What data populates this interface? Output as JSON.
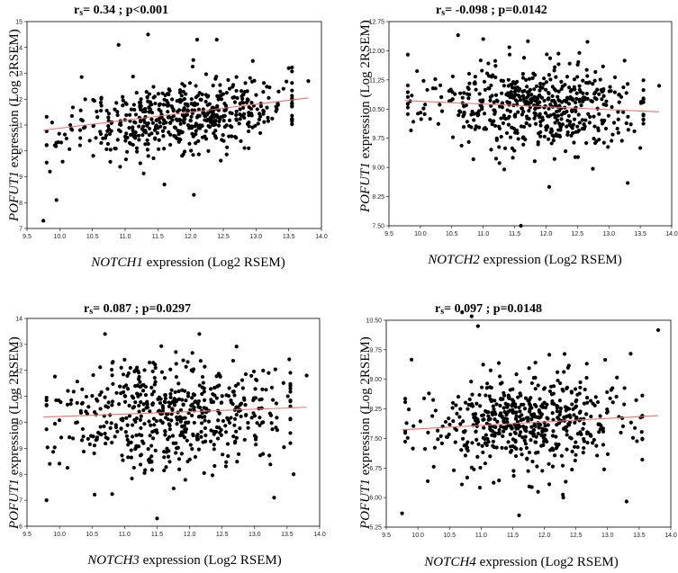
{
  "chart_data": [
    {
      "type": "scatter",
      "stat_prefix": "r",
      "stat_sub": "s",
      "stat_text": "= 0.34 ; p<0.001",
      "xlabel_gene": "NOTCH1",
      "xlabel_rest": " expression (Log2 RSEM)",
      "ylabel_gene": "POFUT1",
      "ylabel_rest": " expression (Log 2RSEM)",
      "xlim": [
        9.5,
        14.0
      ],
      "ylim": [
        7,
        15
      ],
      "xticks": [
        "9.5",
        "10.0",
        "10.5",
        "11.0",
        "11.5",
        "12.0",
        "12.5",
        "13.0",
        "13.5",
        "14.0"
      ],
      "yticks": [
        "7",
        "8",
        "9",
        "10",
        "11",
        "12",
        "13",
        "14",
        "15"
      ],
      "yticks_v": [
        7,
        8,
        9,
        10,
        11,
        12,
        13,
        14,
        15
      ],
      "trend": {
        "x": [
          9.75,
          13.8
        ],
        "y": [
          10.8,
          12.05
        ]
      },
      "sim": {
        "seed": 11,
        "n": 560,
        "slope": 0.31,
        "ysd": 0.68,
        "center": [
          11.85,
          11.35
        ],
        "outliers": [
          [
            9.75,
            7.3
          ],
          [
            9.95,
            8.1
          ],
          [
            11.6,
            8.7
          ],
          [
            12.05,
            8.3
          ],
          [
            11.35,
            14.5
          ],
          [
            12.1,
            14.3
          ],
          [
            12.4,
            14.3
          ],
          [
            10.9,
            14.1
          ],
          [
            13.8,
            12.7
          ],
          [
            9.85,
            9.2
          ],
          [
            13.5,
            13.2
          ]
        ]
      }
    },
    {
      "type": "scatter",
      "stat_prefix": "r",
      "stat_sub": "s",
      "stat_text": "= -0.098 ; p=0.0142",
      "xlabel_gene": "NOTCH2",
      "xlabel_rest": " expression (Log2 RSEM)",
      "ylabel_gene": "POFUT1",
      "ylabel_rest": " expression (Log 2RSEM)",
      "xlim": [
        9.5,
        14.0
      ],
      "ylim": [
        7.5,
        12.75
      ],
      "xticks": [
        "9.5",
        "10.0",
        "10.5",
        "11.0",
        "11.5",
        "12.0",
        "12.5",
        "13.0",
        "13.5",
        "14.0"
      ],
      "yticks": [
        "7.50",
        "8.25",
        "9.00",
        "9.75",
        "10.50",
        "11.25",
        "12.00",
        "12.75"
      ],
      "yticks_v": [
        7.5,
        8.25,
        9.0,
        9.75,
        10.5,
        11.25,
        12.0,
        12.75
      ],
      "trend": {
        "x": [
          9.75,
          13.8
        ],
        "y": [
          10.72,
          10.43
        ]
      },
      "sim": {
        "seed": 23,
        "n": 560,
        "slope": -0.07,
        "ysd": 0.55,
        "center": [
          11.75,
          10.55
        ],
        "outliers": [
          [
            11.6,
            7.5
          ],
          [
            12.05,
            8.5
          ],
          [
            13.3,
            8.6
          ],
          [
            10.6,
            12.4
          ],
          [
            11.0,
            12.3
          ],
          [
            13.8,
            11.1
          ],
          [
            13.5,
            9.5
          ],
          [
            9.8,
            11.9
          ]
        ]
      }
    },
    {
      "type": "scatter",
      "stat_prefix": "r",
      "stat_sub": "s",
      "stat_text": "= 0.087 ; p=0.0297",
      "xlabel_gene": "NOTCH3",
      "xlabel_rest": " expression (Log2 RSEM)",
      "ylabel_gene": "POFUT1",
      "ylabel_rest": " expression (Log 2RSEM)",
      "xlim": [
        9.5,
        14.0
      ],
      "ylim": [
        6,
        14
      ],
      "xticks": [
        "9.5",
        "10.0",
        "10.5",
        "11.0",
        "11.5",
        "12.0",
        "12.5",
        "13.0",
        "13.5",
        "14.0"
      ],
      "yticks": [
        "6",
        "7",
        "8",
        "9",
        "10",
        "11",
        "12",
        "13",
        "14"
      ],
      "yticks_v": [
        6,
        7,
        8,
        9,
        10,
        11,
        12,
        13,
        14
      ],
      "trend": {
        "x": [
          9.75,
          13.8
        ],
        "y": [
          10.2,
          10.58
        ]
      },
      "sim": {
        "seed": 37,
        "n": 560,
        "slope": 0.09,
        "ysd": 1.05,
        "center": [
          11.75,
          10.4
        ],
        "outliers": [
          [
            9.8,
            7.0
          ],
          [
            11.5,
            6.3
          ],
          [
            13.3,
            7.1
          ],
          [
            10.7,
            13.4
          ],
          [
            12.15,
            13.4
          ],
          [
            13.8,
            11.8
          ],
          [
            9.85,
            8.4
          ],
          [
            13.6,
            8.0
          ]
        ]
      }
    },
    {
      "type": "scatter",
      "stat_prefix": "r",
      "stat_sub": "s",
      "stat_text": "= 0.097 ; p=0.0148",
      "xlabel_gene": "NOTCH4",
      "xlabel_rest": " expression (Log2 RSEM)",
      "ylabel_gene": "POFUT1",
      "ylabel_rest": " expression (Log 2RSEM)",
      "xlim": [
        9.5,
        14.0
      ],
      "ylim": [
        5.25,
        10.5
      ],
      "xticks": [
        "9.5",
        "10.0",
        "10.5",
        "11.0",
        "11.5",
        "12.0",
        "12.5",
        "13.0",
        "13.5",
        "14.0"
      ],
      "yticks": [
        "5.25",
        "6.00",
        "6.75",
        "7.50",
        "8.25",
        "9.00",
        "9.75",
        "10.50"
      ],
      "yticks_v": [
        5.25,
        6.0,
        6.75,
        7.5,
        8.25,
        9.0,
        9.75,
        10.5
      ],
      "trend": {
        "x": [
          9.75,
          13.8
        ],
        "y": [
          7.72,
          8.08
        ]
      },
      "sim": {
        "seed": 53,
        "n": 560,
        "slope": 0.08,
        "ysd": 0.62,
        "center": [
          11.8,
          7.9
        ],
        "outliers": [
          [
            9.75,
            5.6
          ],
          [
            11.6,
            5.55
          ],
          [
            13.3,
            5.9
          ],
          [
            10.7,
            10.7
          ],
          [
            10.85,
            10.6
          ],
          [
            10.95,
            10.35
          ],
          [
            13.8,
            10.25
          ],
          [
            12.3,
            6.0
          ],
          [
            9.9,
            9.5
          ]
        ]
      }
    }
  ]
}
